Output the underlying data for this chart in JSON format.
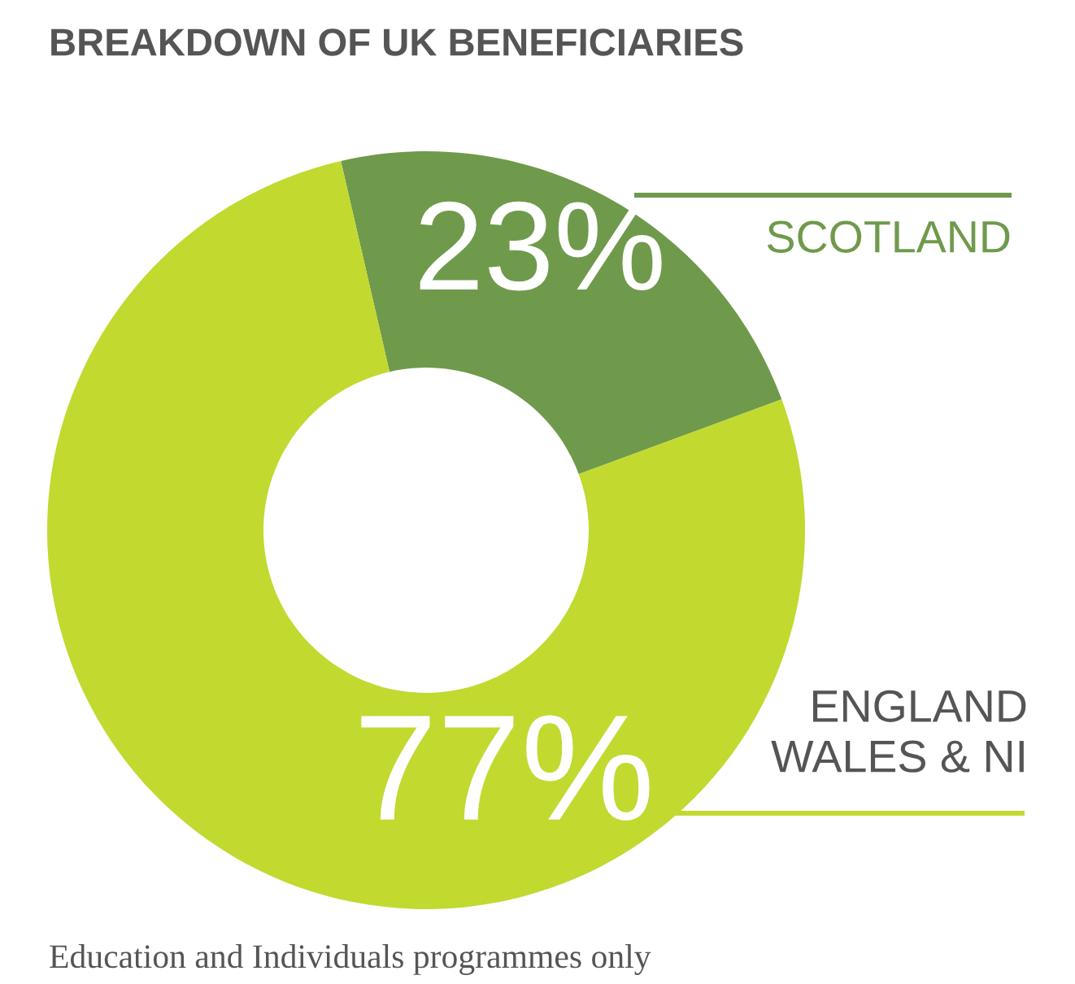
{
  "chart_data": {
    "type": "donut",
    "title": "BREAKDOWN OF UK BENEFICIARIES",
    "categories": [
      "SCOTLAND",
      "ENGLAND\nWALES & NI"
    ],
    "values": [
      23,
      77
    ],
    "colors": [
      "#6f9a4b",
      "#c2d930"
    ],
    "value_labels": [
      "23%",
      "77%"
    ],
    "legend": false,
    "annotations": [
      "Education and Individuals programmes only"
    ]
  }
}
